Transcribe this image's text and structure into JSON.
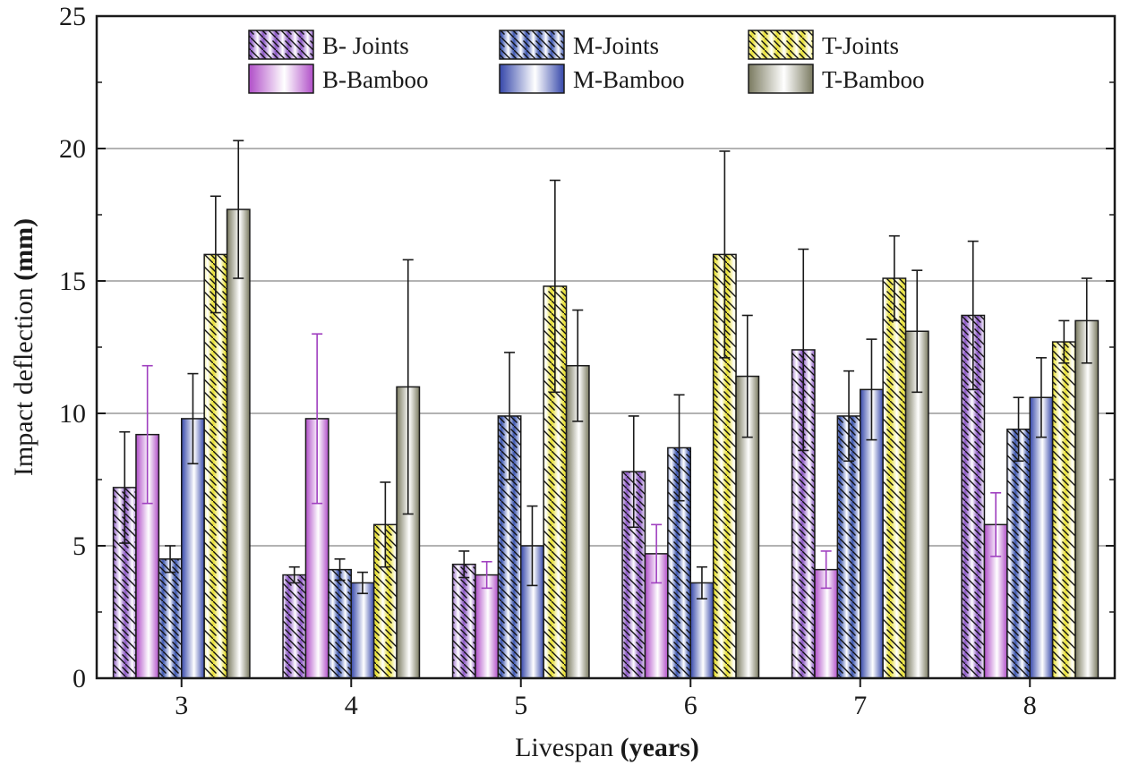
{
  "chart_data": {
    "type": "bar",
    "xlabel": "Livespan",
    "xlabel_unit": "(years)",
    "ylabel": "Impact deflection",
    "ylabel_unit": "(mm)",
    "ylim": [
      0,
      25
    ],
    "yticks": [
      "0",
      "5",
      "10",
      "15",
      "20",
      "25"
    ],
    "grid": true,
    "legend_position": "top",
    "categories": [
      "3",
      "4",
      "5",
      "6",
      "7",
      "8"
    ],
    "series": [
      {
        "name": "B- Joints",
        "style": "hatched",
        "color": "#8a55c4",
        "values": [
          7.2,
          3.9,
          4.3,
          7.8,
          12.4,
          13.7
        ],
        "errors": [
          2.1,
          0.3,
          0.5,
          2.1,
          3.8,
          2.8
        ]
      },
      {
        "name": "B-Bamboo",
        "style": "solid",
        "color": "#b04ec8",
        "values": [
          9.2,
          9.8,
          3.9,
          4.7,
          4.1,
          5.8
        ],
        "errors": [
          2.6,
          3.2,
          0.5,
          1.1,
          0.7,
          1.2
        ]
      },
      {
        "name": "M-Joints",
        "style": "hatched",
        "color": "#3b55b0",
        "values": [
          4.5,
          4.1,
          9.9,
          8.7,
          9.9,
          9.4
        ],
        "errors": [
          0.5,
          0.4,
          2.4,
          2.0,
          1.7,
          1.2
        ]
      },
      {
        "name": "M-Bamboo",
        "style": "solid",
        "color": "#3547aa",
        "values": [
          9.8,
          3.6,
          5.0,
          3.6,
          10.9,
          10.6
        ],
        "errors": [
          1.7,
          0.4,
          1.5,
          0.6,
          1.9,
          1.5
        ]
      },
      {
        "name": "T-Joints",
        "style": "hatched",
        "color": "#e8e030",
        "values": [
          16.0,
          5.8,
          14.8,
          16.0,
          15.1,
          12.7
        ],
        "errors": [
          2.2,
          1.6,
          4.0,
          3.9,
          1.6,
          0.8
        ]
      },
      {
        "name": "T-Bamboo",
        "style": "solid",
        "color": "#7a7a60",
        "values": [
          17.7,
          11.0,
          11.8,
          11.4,
          13.1,
          13.5
        ],
        "errors": [
          2.6,
          4.8,
          2.1,
          2.3,
          2.3,
          1.6
        ]
      }
    ]
  }
}
